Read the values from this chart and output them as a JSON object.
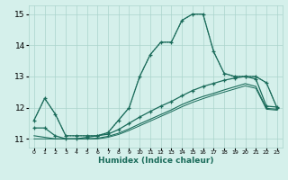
{
  "xlabel": "Humidex (Indice chaleur)",
  "ylabel": "",
  "bg_color": "#d5f0eb",
  "grid_color": "#aad4cc",
  "line_color": "#1a6b5a",
  "xlim": [
    -0.5,
    23.5
  ],
  "ylim": [
    10.72,
    15.28
  ],
  "yticks": [
    11,
    12,
    13,
    14,
    15
  ],
  "xticks": [
    0,
    1,
    2,
    3,
    4,
    5,
    6,
    7,
    8,
    9,
    10,
    11,
    12,
    13,
    14,
    15,
    16,
    17,
    18,
    19,
    20,
    21,
    22,
    23
  ],
  "series": [
    {
      "x": [
        0,
        1,
        2,
        3,
        4,
        5,
        6,
        7,
        8,
        9,
        10,
        11,
        12,
        13,
        14,
        15,
        16,
        17,
        18,
        19,
        20,
        21,
        22,
        23
      ],
      "y": [
        11.6,
        12.3,
        11.8,
        11.1,
        11.1,
        11.1,
        11.1,
        11.2,
        11.6,
        12.0,
        13.0,
        13.7,
        14.1,
        14.1,
        14.8,
        15.0,
        15.0,
        13.8,
        13.1,
        13.0,
        13.0,
        13.0,
        12.8,
        12.0
      ],
      "marker": "+",
      "linestyle": "-",
      "linewidth": 0.9
    },
    {
      "x": [
        0,
        1,
        2,
        3,
        4,
        5,
        6,
        7,
        8,
        9,
        10,
        11,
        12,
        13,
        14,
        15,
        16,
        17,
        18,
        19,
        20,
        21,
        22,
        23
      ],
      "y": [
        11.6,
        12.3,
        11.8,
        11.1,
        11.1,
        11.1,
        11.1,
        11.2,
        11.6,
        12.0,
        13.0,
        13.7,
        14.1,
        14.1,
        14.8,
        15.0,
        15.0,
        13.8,
        13.1,
        13.0,
        13.0,
        13.0,
        12.8,
        12.0
      ],
      "marker": null,
      "linestyle": ":",
      "linewidth": 0.8
    },
    {
      "x": [
        0,
        1,
        2,
        3,
        4,
        5,
        6,
        7,
        8,
        9,
        10,
        11,
        12,
        13,
        14,
        15,
        16,
        17,
        18,
        19,
        20,
        21,
        22,
        23
      ],
      "y": [
        11.35,
        11.35,
        11.1,
        11.0,
        11.0,
        11.05,
        11.1,
        11.15,
        11.3,
        11.5,
        11.7,
        11.88,
        12.05,
        12.2,
        12.38,
        12.55,
        12.68,
        12.78,
        12.88,
        12.95,
        13.0,
        12.92,
        12.05,
        12.02
      ],
      "marker": "+",
      "linestyle": "-",
      "linewidth": 0.9
    },
    {
      "x": [
        0,
        1,
        2,
        3,
        4,
        5,
        6,
        7,
        8,
        9,
        10,
        11,
        12,
        13,
        14,
        15,
        16,
        17,
        18,
        19,
        20,
        21,
        22,
        23
      ],
      "y": [
        11.1,
        11.05,
        11.0,
        11.0,
        11.0,
        11.0,
        11.02,
        11.08,
        11.18,
        11.32,
        11.48,
        11.63,
        11.78,
        11.93,
        12.1,
        12.24,
        12.36,
        12.46,
        12.57,
        12.67,
        12.77,
        12.68,
        11.98,
        11.95
      ],
      "marker": null,
      "linestyle": "-",
      "linewidth": 0.8
    },
    {
      "x": [
        0,
        1,
        2,
        3,
        4,
        5,
        6,
        7,
        8,
        9,
        10,
        11,
        12,
        13,
        14,
        15,
        16,
        17,
        18,
        19,
        20,
        21,
        22,
        23
      ],
      "y": [
        11.0,
        11.0,
        11.0,
        11.0,
        11.0,
        11.0,
        11.0,
        11.05,
        11.14,
        11.27,
        11.42,
        11.57,
        11.72,
        11.87,
        12.03,
        12.17,
        12.29,
        12.4,
        12.5,
        12.6,
        12.7,
        12.62,
        11.95,
        11.92
      ],
      "marker": null,
      "linestyle": "-",
      "linewidth": 0.7
    }
  ]
}
